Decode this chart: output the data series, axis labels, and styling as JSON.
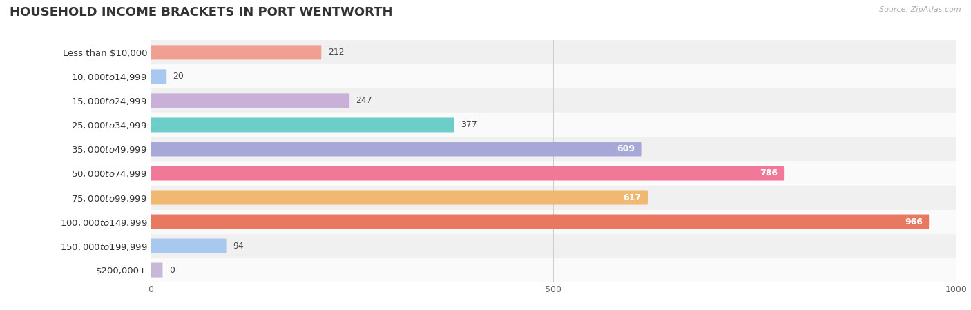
{
  "title": "HOUSEHOLD INCOME BRACKETS IN PORT WENTWORTH",
  "source_text": "Source: ZipAtlas.com",
  "categories": [
    "Less than $10,000",
    "$10,000 to $14,999",
    "$15,000 to $24,999",
    "$25,000 to $34,999",
    "$35,000 to $49,999",
    "$50,000 to $74,999",
    "$75,000 to $99,999",
    "$100,000 to $149,999",
    "$150,000 to $199,999",
    "$200,000+"
  ],
  "values": [
    212,
    20,
    247,
    377,
    609,
    786,
    617,
    966,
    94,
    0
  ],
  "bar_colors": [
    "#f0a090",
    "#a8c8f0",
    "#c8b0d8",
    "#6dcdc8",
    "#a8a8d8",
    "#f07898",
    "#f0b870",
    "#e87860",
    "#a8c8f0",
    "#c8b8d8"
  ],
  "row_bg_colors": [
    "#f0f0f0",
    "#fafafa",
    "#f0f0f0",
    "#fafafa",
    "#f0f0f0",
    "#fafafa",
    "#f0f0f0",
    "#fafafa",
    "#f0f0f0",
    "#fafafa"
  ],
  "xlim": [
    0,
    1000
  ],
  "xticks": [
    0,
    500,
    1000
  ],
  "title_fontsize": 13,
  "label_fontsize": 9.5,
  "value_fontsize": 9,
  "bar_height": 0.6,
  "figsize": [
    14.06,
    4.49
  ],
  "dpi": 100,
  "value_threshold": 500
}
